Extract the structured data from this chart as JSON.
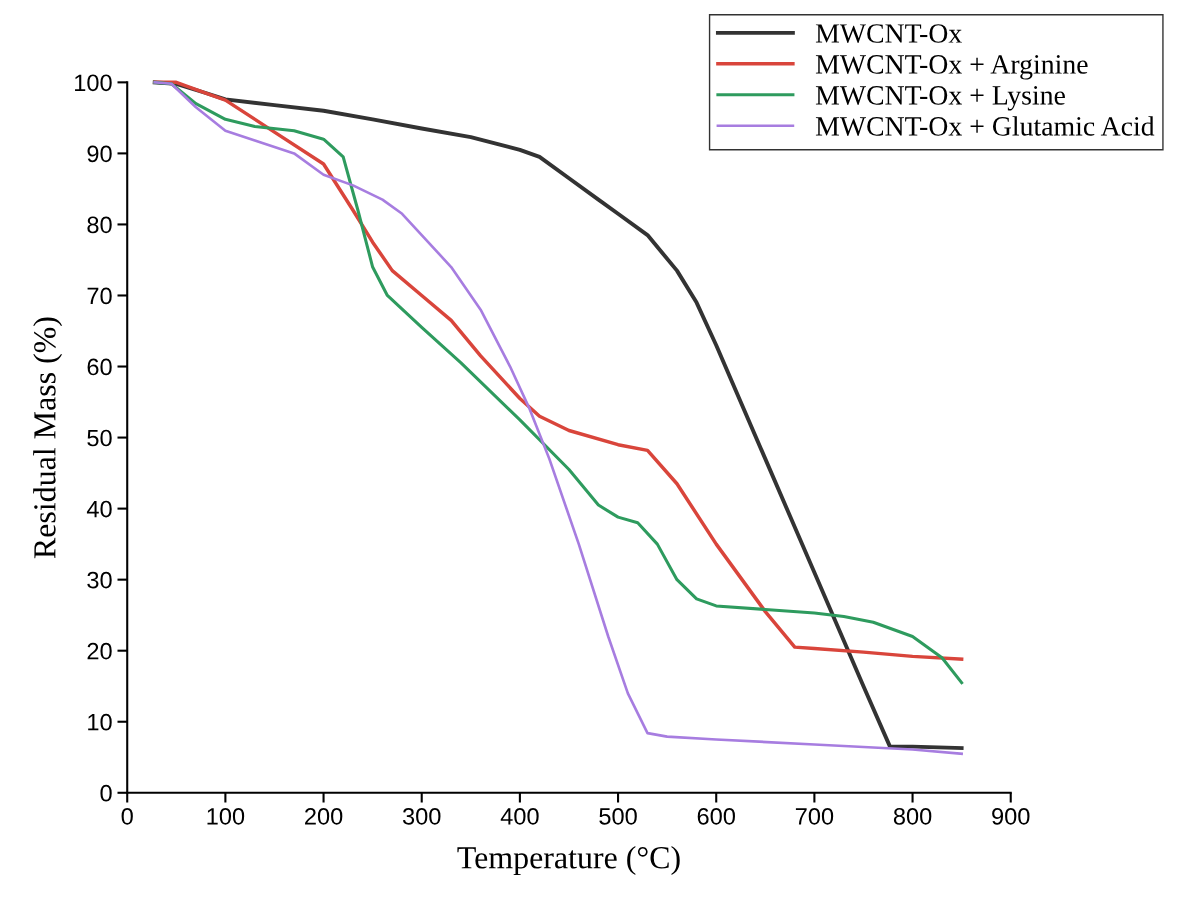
{
  "chart_data": {
    "type": "line",
    "xlabel": "Temperature (°C)",
    "ylabel": "Residual Mass (%)",
    "xlim": [
      0,
      900
    ],
    "xticks": [
      0,
      100,
      200,
      300,
      400,
      500,
      600,
      700,
      800,
      900
    ],
    "ylim": [
      0,
      100
    ],
    "yticks": [
      0,
      10,
      20,
      30,
      40,
      50,
      60,
      70,
      80,
      90,
      100
    ],
    "grid": false,
    "legend": "top right",
    "line_style": "solid",
    "series": [
      {
        "name": "MWCNT-Ox",
        "color": "#333333",
        "x": [
          28,
          50,
          80,
          100,
          150,
          200,
          250,
          300,
          350,
          400,
          420,
          450,
          480,
          500,
          530,
          560,
          580,
          600,
          650,
          700,
          750,
          777,
          800,
          850
        ],
        "values": [
          100,
          99.8,
          98.5,
          97.6,
          96.8,
          96,
          94.8,
          93.5,
          92.3,
          90.5,
          89.5,
          86.5,
          83.5,
          81.5,
          78.5,
          73.5,
          69,
          63,
          47,
          31,
          15,
          6.5,
          6.5,
          6.3
        ]
      },
      {
        "name": "MWCNT-Ox + Arginine",
        "color": "#d9453b",
        "x": [
          28,
          50,
          80,
          100,
          150,
          200,
          230,
          250,
          270,
          300,
          330,
          360,
          400,
          420,
          450,
          500,
          530,
          560,
          600,
          650,
          680,
          700,
          750,
          800,
          850
        ],
        "values": [
          100,
          100,
          98.5,
          97.5,
          93,
          88.5,
          82,
          77.5,
          73.5,
          70,
          66.5,
          61.5,
          55.5,
          53,
          51,
          49,
          48.2,
          43.5,
          35,
          25.5,
          20.5,
          20.3,
          19.8,
          19.2,
          18.8
        ]
      },
      {
        "name": "MWCNT-Ox + Lysine",
        "color": "#2e9b5e",
        "x": [
          28,
          45,
          70,
          100,
          130,
          170,
          200,
          220,
          235,
          250,
          265,
          300,
          340,
          400,
          450,
          480,
          500,
          520,
          540,
          560,
          580,
          600,
          650,
          700,
          730,
          760,
          800,
          830,
          850
        ],
        "values": [
          100,
          99.8,
          97,
          94.8,
          93.8,
          93.2,
          92,
          89.5,
          82,
          74,
          70,
          65.5,
          60.5,
          52.5,
          45.5,
          40.5,
          38.8,
          38,
          35,
          30,
          27.3,
          26.3,
          25.8,
          25.3,
          24.8,
          24,
          22,
          19,
          15.5
        ]
      },
      {
        "name": "MWCNT-Ox + Glutamic Acid",
        "color": "#a77de0",
        "x": [
          28,
          45,
          70,
          100,
          130,
          170,
          200,
          230,
          260,
          280,
          300,
          330,
          360,
          390,
          410,
          430,
          460,
          490,
          510,
          530,
          550,
          600,
          700,
          800,
          850
        ],
        "values": [
          100,
          99.8,
          96.5,
          93.2,
          91.8,
          90,
          87,
          85.5,
          83.5,
          81.5,
          78.5,
          74,
          68,
          60,
          54,
          47,
          35,
          22,
          14,
          8.4,
          7.9,
          7.5,
          6.8,
          6.1,
          5.5
        ]
      }
    ]
  }
}
